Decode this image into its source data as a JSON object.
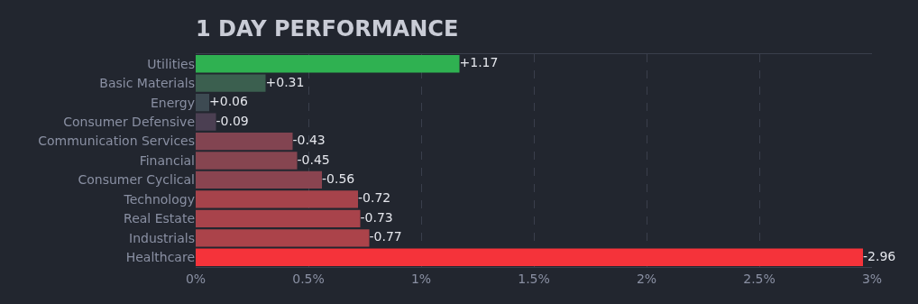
{
  "chart_data": {
    "type": "bar",
    "orientation": "horizontal",
    "title": "1 DAY PERFORMANCE",
    "categories": [
      "Utilities",
      "Basic Materials",
      "Energy",
      "Consumer Defensive",
      "Communication Services",
      "Financial",
      "Consumer Cyclical",
      "Technology",
      "Real Estate",
      "Industrials",
      "Healthcare"
    ],
    "values": [
      1.17,
      0.31,
      0.06,
      -0.09,
      -0.43,
      -0.45,
      -0.56,
      -0.72,
      -0.73,
      -0.77,
      -2.96
    ],
    "base": [
      0,
      0,
      0,
      0.09,
      0.43,
      0.45,
      0.56,
      0.72,
      0.73,
      0.77,
      2.96
    ],
    "value_labels": [
      "+1.17",
      "+0.31",
      "+0.06",
      "-0.09",
      "-0.43",
      "-0.45",
      "-0.56",
      "-0.72",
      "-0.73",
      "-0.77",
      "-2.96"
    ],
    "colors": [
      "#2fb151",
      "#3b5f4f",
      "#3d4a52",
      "#4b3f52",
      "#824451",
      "#864550",
      "#8a4450",
      "#a6434b",
      "#a8434b",
      "#ab434a",
      "#f5333a"
    ],
    "xlim": [
      0,
      3
    ],
    "xticks": [
      {
        "value": 0,
        "label": "0%"
      },
      {
        "value": 0.5,
        "label": "0.5%"
      },
      {
        "value": 1,
        "label": "1%"
      },
      {
        "value": 1.5,
        "label": "1.5%"
      },
      {
        "value": 2,
        "label": "2%"
      },
      {
        "value": 2.5,
        "label": "2.5%"
      },
      {
        "value": 3,
        "label": "3%"
      }
    ],
    "grid": "x"
  }
}
